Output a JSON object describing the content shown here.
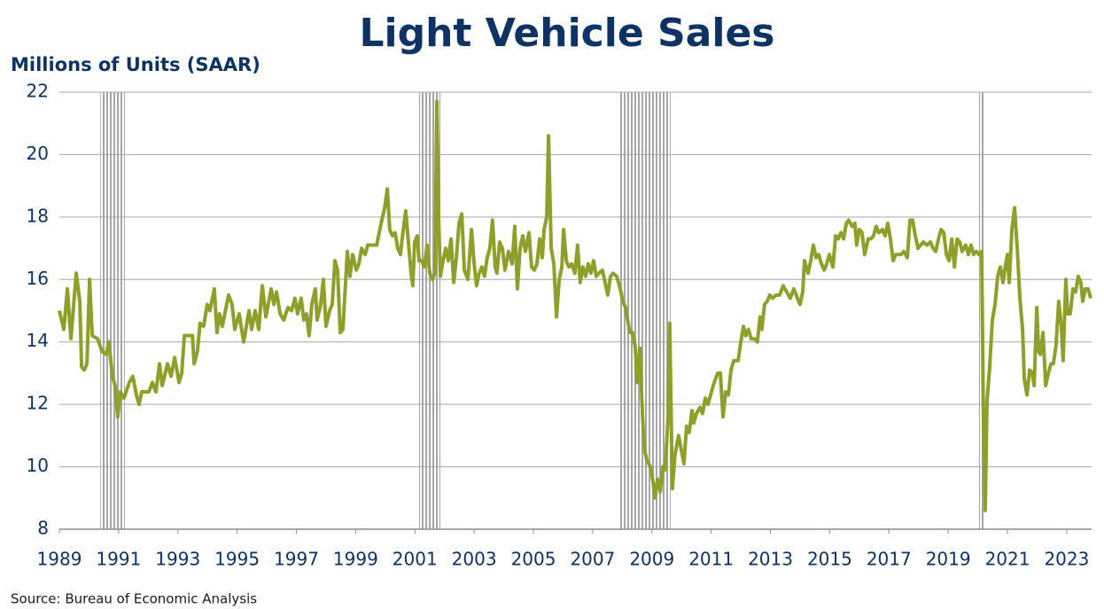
{
  "chart_data": {
    "type": "line",
    "title": "Light Vehicle Sales",
    "y_label": "Millions of Units (SAAR)",
    "source": "Source:  Bureau of Economic Analysis",
    "color": "#8fa02a",
    "recession_color": "#a6a6a6",
    "grid": true,
    "xlim": [
      1989,
      2023.84
    ],
    "ylim": [
      8,
      22
    ],
    "xticks": [
      1989,
      1991,
      1993,
      1995,
      1997,
      1999,
      2001,
      2003,
      2005,
      2007,
      2009,
      2011,
      2013,
      2015,
      2017,
      2019,
      2021,
      2023
    ],
    "yticks": [
      8,
      10,
      12,
      14,
      16,
      18,
      20,
      22
    ],
    "recessions": [
      {
        "start": 1990.38,
        "end": 1991.21
      },
      {
        "start": 2001.14,
        "end": 2001.86
      },
      {
        "start": 2007.87,
        "end": 2009.63
      },
      {
        "start": 2020.04,
        "end": 2020.25
      }
    ],
    "x": [
      1989.0,
      1989.15,
      1989.27,
      1989.39,
      1989.57,
      1989.69,
      1989.75,
      1989.84,
      1989.93,
      1990.02,
      1990.11,
      1990.29,
      1990.44,
      1990.58,
      1990.67,
      1990.79,
      1990.88,
      1990.97,
      1991.06,
      1991.18,
      1991.36,
      1991.48,
      1991.6,
      1991.69,
      1991.78,
      1992.02,
      1992.14,
      1992.26,
      1992.38,
      1992.47,
      1992.65,
      1992.77,
      1992.89,
      1993.04,
      1993.13,
      1993.22,
      1993.49,
      1993.55,
      1993.66,
      1993.75,
      1993.87,
      1993.99,
      1994.08,
      1994.23,
      1994.32,
      1994.41,
      1994.5,
      1994.71,
      1994.83,
      1994.92,
      1995.07,
      1995.22,
      1995.4,
      1995.49,
      1995.61,
      1995.73,
      1995.85,
      1995.97,
      1996.15,
      1996.24,
      1996.33,
      1996.45,
      1996.57,
      1996.72,
      1996.84,
      1996.95,
      1997.04,
      1997.16,
      1997.25,
      1997.34,
      1997.43,
      1997.52,
      1997.64,
      1997.7,
      1997.82,
      1997.91,
      1998.0,
      1998.12,
      1998.21,
      1998.3,
      1998.39,
      1998.48,
      1998.57,
      1998.72,
      1998.81,
      1998.9,
      1999.02,
      1999.11,
      1999.2,
      1999.32,
      1999.41,
      1999.71,
      1999.86,
      1999.98,
      2000.07,
      2000.15,
      2000.24,
      2000.33,
      2000.42,
      2000.51,
      2000.57,
      2000.69,
      2000.78,
      2000.87,
      2000.93,
      2000.99,
      2001.08,
      2001.14,
      2001.23,
      2001.32,
      2001.41,
      2001.5,
      2001.59,
      2001.68,
      2001.74,
      2001.8,
      2001.86,
      2001.95,
      2002.04,
      2002.13,
      2002.22,
      2002.31,
      2002.4,
      2002.49,
      2002.58,
      2002.67,
      2002.79,
      2002.91,
      2003.0,
      2003.08,
      2003.17,
      2003.26,
      2003.35,
      2003.44,
      2003.53,
      2003.62,
      2003.71,
      2003.77,
      2003.86,
      2003.95,
      2004.04,
      2004.16,
      2004.28,
      2004.37,
      2004.46,
      2004.55,
      2004.64,
      2004.73,
      2004.85,
      2004.94,
      2005.03,
      2005.12,
      2005.21,
      2005.3,
      2005.36,
      2005.45,
      2005.51,
      2005.6,
      2005.69,
      2005.78,
      2005.87,
      2005.96,
      2006.02,
      2006.11,
      2006.2,
      2006.29,
      2006.4,
      2006.49,
      2006.58,
      2006.67,
      2006.76,
      2006.85,
      2006.94,
      2007.03,
      2007.12,
      2007.21,
      2007.33,
      2007.42,
      2007.51,
      2007.6,
      2007.69,
      2007.81,
      2007.93,
      2008.02,
      2008.11,
      2008.2,
      2008.26,
      2008.35,
      2008.44,
      2008.5,
      2008.59,
      2008.68,
      2008.74,
      2008.83,
      2008.95,
      2009.04,
      2009.1,
      2009.19,
      2009.28,
      2009.37,
      2009.45,
      2009.54,
      2009.6,
      2009.69,
      2009.78,
      2009.9,
      2010.02,
      2010.08,
      2010.17,
      2010.26,
      2010.35,
      2010.41,
      2010.5,
      2010.62,
      2010.71,
      2010.8,
      2010.89,
      2011.01,
      2011.1,
      2011.22,
      2011.31,
      2011.4,
      2011.49,
      2011.58,
      2011.67,
      2011.76,
      2011.91,
      2012.0,
      2012.09,
      2012.17,
      2012.26,
      2012.35,
      2012.47,
      2012.56,
      2012.65,
      2012.71,
      2012.8,
      2012.89,
      2012.98,
      2013.07,
      2013.19,
      2013.31,
      2013.43,
      2013.55,
      2013.67,
      2013.79,
      2013.91,
      2014.0,
      2014.09,
      2014.15,
      2014.27,
      2014.36,
      2014.45,
      2014.54,
      2014.63,
      2014.72,
      2014.81,
      2014.9,
      2014.99,
      2015.11,
      2015.2,
      2015.29,
      2015.38,
      2015.47,
      2015.56,
      2015.64,
      2015.76,
      2015.85,
      2015.91,
      2016.0,
      2016.09,
      2016.18,
      2016.3,
      2016.39,
      2016.48,
      2016.57,
      2016.66,
      2016.78,
      2016.87,
      2016.96,
      2017.05,
      2017.14,
      2017.23,
      2017.32,
      2017.41,
      2017.5,
      2017.62,
      2017.71,
      2017.8,
      2017.89,
      2017.98,
      2018.07,
      2018.16,
      2018.28,
      2018.4,
      2018.49,
      2018.58,
      2018.67,
      2018.76,
      2018.85,
      2018.94,
      2019.03,
      2019.12,
      2019.21,
      2019.3,
      2019.39,
      2019.47,
      2019.59,
      2019.68,
      2019.77,
      2019.86,
      2019.95,
      2020.04,
      2020.13,
      2020.19,
      2020.25,
      2020.31,
      2020.4,
      2020.49,
      2020.58,
      2020.67,
      2020.76,
      2020.85,
      2020.94,
      2021.0,
      2021.06,
      2021.15,
      2021.24,
      2021.33,
      2021.42,
      2021.51,
      2021.57,
      2021.66,
      2021.75,
      2021.84,
      2021.9,
      2021.99,
      2022.05,
      2022.11,
      2022.2,
      2022.29,
      2022.38,
      2022.47,
      2022.55,
      2022.64,
      2022.73,
      2022.82,
      2022.88,
      2022.97,
      2023.03,
      2023.12,
      2023.21,
      2023.3,
      2023.39,
      2023.48,
      2023.54,
      2023.63,
      2023.72,
      2023.81
    ],
    "values": [
      15.0,
      14.4,
      15.7,
      14.1,
      16.2,
      15.3,
      13.2,
      13.1,
      13.3,
      16.0,
      14.2,
      14.1,
      13.7,
      13.6,
      14.0,
      12.9,
      12.6,
      11.6,
      12.4,
      12.2,
      12.7,
      12.9,
      12.3,
      12.0,
      12.4,
      12.4,
      12.7,
      12.4,
      13.3,
      12.6,
      13.3,
      12.9,
      13.5,
      12.7,
      13.0,
      14.2,
      14.2,
      13.3,
      13.7,
      14.6,
      14.5,
      15.2,
      15.0,
      15.7,
      14.3,
      14.9,
      14.5,
      15.5,
      15.2,
      14.4,
      14.9,
      14.0,
      15.0,
      14.4,
      15.0,
      14.4,
      15.8,
      14.8,
      15.7,
      15.2,
      15.6,
      14.9,
      14.7,
      15.1,
      15.0,
      15.4,
      14.9,
      15.4,
      14.7,
      14.9,
      14.2,
      15.2,
      15.7,
      14.7,
      15.2,
      16.0,
      14.5,
      15.0,
      15.2,
      16.6,
      16.3,
      14.3,
      14.4,
      16.9,
      16.1,
      16.8,
      16.3,
      16.5,
      17.0,
      16.8,
      17.1,
      17.1,
      17.8,
      18.3,
      18.9,
      17.6,
      17.4,
      17.5,
      17.0,
      16.8,
      17.3,
      18.2,
      17.2,
      16.2,
      15.8,
      17.2,
      17.4,
      16.6,
      16.6,
      16.4,
      17.1,
      16.2,
      16.0,
      16.2,
      21.7,
      18.0,
      16.1,
      16.6,
      17.0,
      16.6,
      17.3,
      15.9,
      16.7,
      17.8,
      18.1,
      16.3,
      16.0,
      17.6,
      16.5,
      15.8,
      16.2,
      16.4,
      16.1,
      16.7,
      17.0,
      17.9,
      16.4,
      16.2,
      17.2,
      17.0,
      16.3,
      16.9,
      16.5,
      17.7,
      15.7,
      17.0,
      17.4,
      16.9,
      17.5,
      16.4,
      16.3,
      16.5,
      17.3,
      16.7,
      17.6,
      18.0,
      20.6,
      17.0,
      16.5,
      14.8,
      16.0,
      16.4,
      17.6,
      16.6,
      16.4,
      16.5,
      16.2,
      17.1,
      15.9,
      16.4,
      16.1,
      16.5,
      16.2,
      16.6,
      16.1,
      16.2,
      16.3,
      15.9,
      15.5,
      16.1,
      16.2,
      16.1,
      15.7,
      15.3,
      15.1,
      14.6,
      14.3,
      14.3,
      13.8,
      12.7,
      13.8,
      11.7,
      10.6,
      10.2,
      10.0,
      9.5,
      9.0,
      9.6,
      9.2,
      10.0,
      9.9,
      11.5,
      14.6,
      9.3,
      10.4,
      11.0,
      10.4,
      10.1,
      11.3,
      11.1,
      11.8,
      11.4,
      11.7,
      11.9,
      11.7,
      12.2,
      12.0,
      12.4,
      12.7,
      13.0,
      13.0,
      11.6,
      12.4,
      12.3,
      13.1,
      13.4,
      13.4,
      14.0,
      14.5,
      14.2,
      14.4,
      14.1,
      14.1,
      14.0,
      14.8,
      14.4,
      15.2,
      15.3,
      15.5,
      15.4,
      15.5,
      15.5,
      15.8,
      15.6,
      15.4,
      15.7,
      15.4,
      15.2,
      15.6,
      16.6,
      16.2,
      16.6,
      17.1,
      16.7,
      16.8,
      16.5,
      16.3,
      16.5,
      16.8,
      16.4,
      17.4,
      17.3,
      17.5,
      17.3,
      17.8,
      17.9,
      17.7,
      17.8,
      17.1,
      17.6,
      17.5,
      16.8,
      17.3,
      17.3,
      17.4,
      17.7,
      17.5,
      17.6,
      17.4,
      17.8,
      17.3,
      16.6,
      16.8,
      16.8,
      16.8,
      16.9,
      16.7,
      17.9,
      17.9,
      17.4,
      17.0,
      17.1,
      17.2,
      17.1,
      17.2,
      17.0,
      16.9,
      17.3,
      17.6,
      17.5,
      16.8,
      16.6,
      17.3,
      16.4,
      17.3,
      17.2,
      16.9,
      17.1,
      16.8,
      17.1,
      16.8,
      16.9,
      16.8,
      16.9,
      11.4,
      8.6,
      12.1,
      13.2,
      14.7,
      15.2,
      16.1,
      16.4,
      15.9,
      16.5,
      16.8,
      15.9,
      17.6,
      18.3,
      17.0,
      15.4,
      14.4,
      12.8,
      12.3,
      13.1,
      13.0,
      12.6,
      15.1,
      13.7,
      13.6,
      14.3,
      12.6,
      13.0,
      13.3,
      13.3,
      13.9,
      15.3,
      14.5,
      13.4,
      16.0,
      14.9,
      14.9,
      15.7,
      15.6,
      16.1,
      15.9,
      15.3,
      15.7,
      15.7,
      15.4
    ]
  }
}
